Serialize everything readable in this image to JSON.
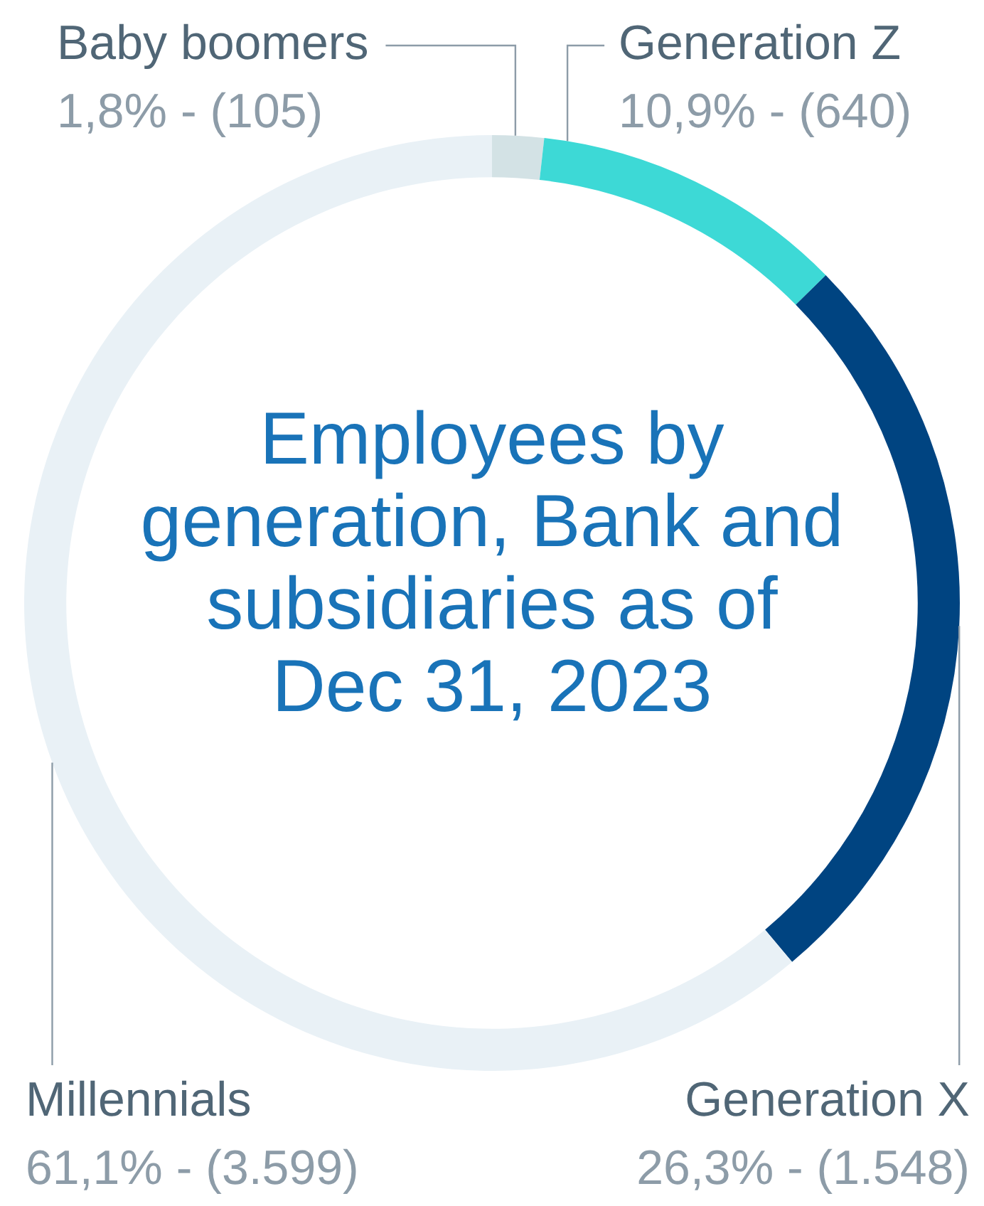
{
  "chart_data": {
    "type": "donut",
    "title": "Employees by generation, Bank and subsidiaries as of Dec 31, 2023",
    "categories": [
      "Baby boomers",
      "Generation Z",
      "Generation X",
      "Millennials"
    ],
    "values": [
      105,
      640,
      1548,
      3599
    ],
    "colors": [
      "#d3e2e5",
      "#3dd9d6",
      "#004481",
      "#e9f1f6"
    ],
    "value_labels": [
      "1,8% - (105)",
      "10,9% - (640)",
      "26,3% - (1.548)",
      "61,1% - (3.599)"
    ]
  }
}
